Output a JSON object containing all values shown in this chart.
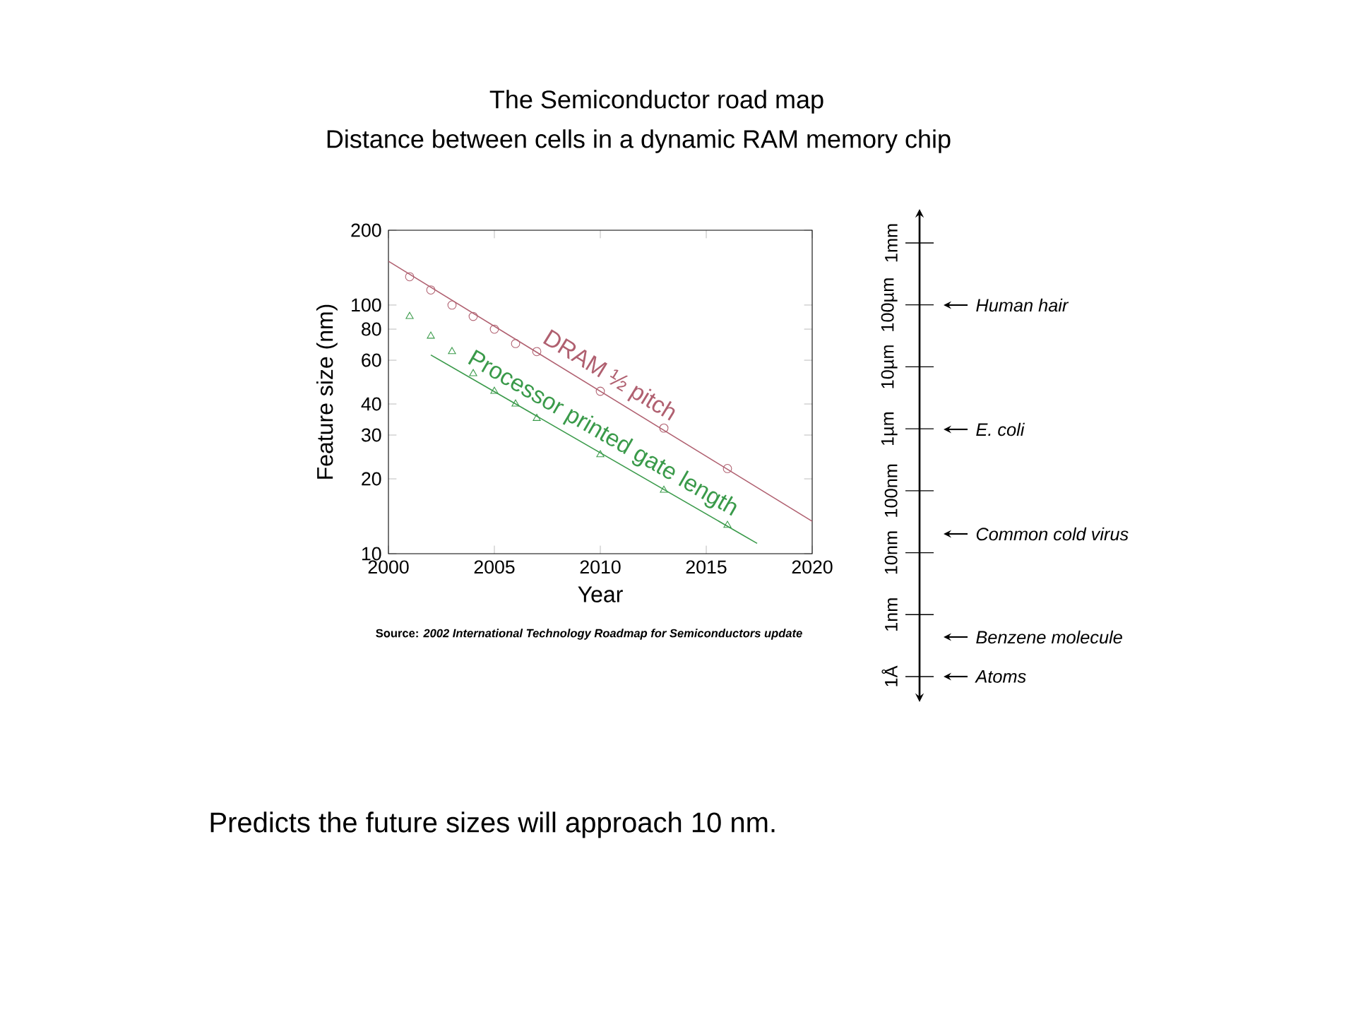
{
  "chart_data": [
    {
      "type": "scatter",
      "title": "The Semiconductor road map",
      "subtitle": "Distance between cells in a dynamic RAM memory chip",
      "xlabel": "Year",
      "ylabel": "Feature size (nm)",
      "log": "y",
      "xlim": [
        2000,
        2020
      ],
      "xticks": [
        2000,
        2005,
        2010,
        2015,
        2020
      ],
      "ylim": [
        10,
        200
      ],
      "yticks": [
        10,
        20,
        30,
        40,
        60,
        80,
        100,
        200
      ],
      "series": [
        {
          "type": "scatter",
          "marker": "circle",
          "color": "#b06070",
          "x": [
            2001,
            2002,
            2003,
            2004,
            2005,
            2006,
            2007,
            2010,
            2013,
            2016
          ],
          "values": [
            130,
            115,
            100,
            90,
            80,
            70,
            65,
            45,
            32,
            22
          ]
        },
        {
          "type": "line",
          "name": "DRAM ½ pitch",
          "color": "#b06070",
          "line_style": "solid",
          "x": [
            2000,
            2020
          ],
          "values": [
            150,
            13.5
          ]
        },
        {
          "type": "scatter",
          "marker": "triangle",
          "color": "#3a9a4a",
          "x": [
            2001,
            2002,
            2003,
            2004,
            2005,
            2006,
            2007,
            2010,
            2013,
            2016
          ],
          "values": [
            90,
            75,
            65,
            53,
            45,
            40,
            35,
            25,
            18,
            13
          ]
        },
        {
          "type": "line",
          "name": "Processor printed gate length",
          "color": "#3a9a4a",
          "line_style": "solid",
          "x": [
            2002,
            2017.4
          ],
          "values": [
            63,
            11
          ]
        }
      ],
      "annotations": [
        "Source: *2002 International Technology Roadmap for Semiconductors update*",
        "Predicts the future sizes will approach 10 nm."
      ]
    },
    {
      "type": "other",
      "categories": [
        "1mm",
        "100µm",
        "10µm",
        "1µm",
        "100nm",
        "10nm",
        "1nm",
        "1Å"
      ],
      "annotations": [
        "Human hair",
        "E. coli",
        "Common cold virus",
        "Benzene molecule",
        "Atoms"
      ]
    }
  ]
}
